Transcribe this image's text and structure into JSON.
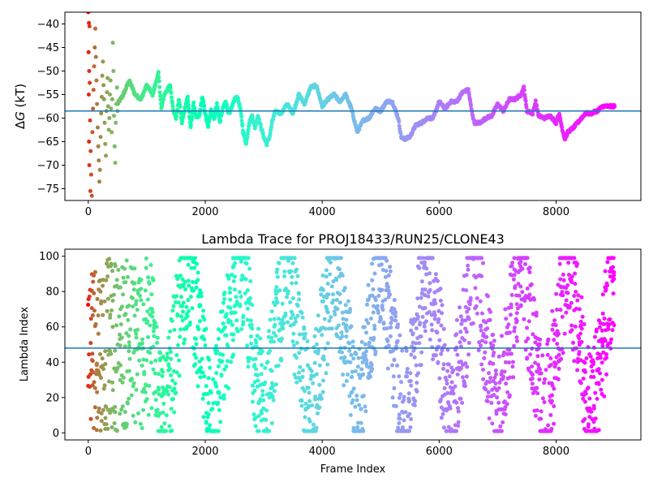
{
  "chart_data": [
    {
      "type": "scatter",
      "title": "",
      "xlabel": "",
      "ylabel": "ΔG (kT)",
      "ylabel_parts": {
        "delta": "Δ",
        "var": "G",
        "unit": " (kT)"
      },
      "xlim": [
        -400,
        9450
      ],
      "ylim": [
        -77.5,
        -37.5
      ],
      "xticks": [
        0,
        2000,
        4000,
        6000,
        8000
      ],
      "xtick_labels": [
        "0",
        "2000",
        "4000",
        "6000",
        "8000"
      ],
      "yticks": [
        -40,
        -45,
        -50,
        -55,
        -60,
        -65,
        -70,
        -75
      ],
      "ytick_labels": [
        "−40",
        "−45",
        "−50",
        "−55",
        "−60",
        "−65",
        "−70",
        "−75"
      ],
      "grid": false,
      "legend": "none",
      "colormap": "rainbow (red at frame 0 → violet at last frame)",
      "hline": {
        "y": -58.5,
        "color": "#1f77b4"
      },
      "early_scatter": [
        [
          0,
          -37.5
        ],
        [
          10,
          -39.8
        ],
        [
          20,
          -40.5
        ],
        [
          5,
          -46
        ],
        [
          15,
          -50
        ],
        [
          25,
          -52.5
        ],
        [
          8,
          -55
        ],
        [
          30,
          -60.5
        ],
        [
          12,
          -65
        ],
        [
          40,
          -67
        ],
        [
          18,
          -70
        ],
        [
          50,
          -72
        ],
        [
          60,
          -76.5
        ],
        [
          35,
          -75.5
        ],
        [
          70,
          -63
        ],
        [
          80,
          -58
        ],
        [
          90,
          -54
        ],
        [
          100,
          -49
        ],
        [
          110,
          -45
        ],
        [
          120,
          -41
        ],
        [
          130,
          -47
        ],
        [
          140,
          -52
        ],
        [
          150,
          -57
        ],
        [
          160,
          -62
        ],
        [
          170,
          -66
        ],
        [
          180,
          -69
        ],
        [
          190,
          -73.5
        ],
        [
          200,
          -71
        ],
        [
          210,
          -64
        ],
        [
          220,
          -59
        ],
        [
          230,
          -55.5
        ],
        [
          240,
          -51
        ],
        [
          250,
          -48
        ],
        [
          260,
          -53
        ],
        [
          270,
          -56
        ],
        [
          280,
          -61
        ],
        [
          290,
          -65.5
        ],
        [
          300,
          -68
        ],
        [
          310,
          -58.5
        ],
        [
          320,
          -54.5
        ],
        [
          330,
          -51.5
        ],
        [
          340,
          -57.5
        ],
        [
          350,
          -62.5
        ],
        [
          360,
          -60
        ],
        [
          370,
          -55
        ],
        [
          380,
          -52
        ],
        [
          390,
          -58
        ],
        [
          400,
          -63
        ],
        [
          410,
          -56
        ],
        [
          420,
          -44
        ],
        [
          430,
          -50
        ],
        [
          440,
          -59.5
        ],
        [
          450,
          -66
        ],
        [
          460,
          -69.5
        ],
        [
          470,
          -61
        ],
        [
          480,
          -57
        ],
        [
          490,
          -53.5
        ],
        [
          500,
          -58.5
        ]
      ],
      "trajectory": [
        [
          500,
          -57
        ],
        [
          600,
          -55
        ],
        [
          700,
          -52
        ],
        [
          800,
          -55
        ],
        [
          900,
          -56
        ],
        [
          1000,
          -53
        ],
        [
          1100,
          -55
        ],
        [
          1200,
          -50.5
        ],
        [
          1250,
          -58
        ],
        [
          1300,
          -55
        ],
        [
          1400,
          -53
        ],
        [
          1450,
          -58
        ],
        [
          1500,
          -60
        ],
        [
          1550,
          -56
        ],
        [
          1600,
          -61
        ],
        [
          1650,
          -58
        ],
        [
          1700,
          -55.5
        ],
        [
          1750,
          -62
        ],
        [
          1800,
          -57
        ],
        [
          1850,
          -60
        ],
        [
          1900,
          -59.5
        ],
        [
          1950,
          -55.5
        ],
        [
          2000,
          -59
        ],
        [
          2050,
          -62
        ],
        [
          2100,
          -58
        ],
        [
          2150,
          -60
        ],
        [
          2200,
          -57
        ],
        [
          2250,
          -61
        ],
        [
          2300,
          -58
        ],
        [
          2350,
          -56.5
        ],
        [
          2400,
          -59
        ],
        [
          2450,
          -58
        ],
        [
          2500,
          -56
        ],
        [
          2550,
          -55.5
        ],
        [
          2600,
          -58
        ],
        [
          2650,
          -63
        ],
        [
          2700,
          -65.5
        ],
        [
          2750,
          -61
        ],
        [
          2800,
          -59.5
        ],
        [
          2850,
          -62
        ],
        [
          2900,
          -59.5
        ],
        [
          3000,
          -64
        ],
        [
          3050,
          -65.5
        ],
        [
          3100,
          -64
        ],
        [
          3150,
          -60.5
        ],
        [
          3200,
          -58.5
        ],
        [
          3300,
          -59
        ],
        [
          3400,
          -57
        ],
        [
          3500,
          -59
        ],
        [
          3600,
          -55
        ],
        [
          3700,
          -57
        ],
        [
          3800,
          -53.5
        ],
        [
          3900,
          -53
        ],
        [
          4000,
          -57.5
        ],
        [
          4100,
          -56
        ],
        [
          4200,
          -55
        ],
        [
          4300,
          -56.5
        ],
        [
          4400,
          -55
        ],
        [
          4500,
          -58
        ],
        [
          4600,
          -63
        ],
        [
          4700,
          -60.5
        ],
        [
          4800,
          -60
        ],
        [
          4900,
          -58
        ],
        [
          5000,
          -58.5
        ],
        [
          5100,
          -56.5
        ],
        [
          5200,
          -56.5
        ],
        [
          5300,
          -60
        ],
        [
          5350,
          -64
        ],
        [
          5400,
          -64.5
        ],
        [
          5500,
          -64
        ],
        [
          5600,
          -61.5
        ],
        [
          5700,
          -61
        ],
        [
          5800,
          -60
        ],
        [
          5900,
          -60
        ],
        [
          6000,
          -56.5
        ],
        [
          6100,
          -58
        ],
        [
          6200,
          -56.5
        ],
        [
          6300,
          -56.5
        ],
        [
          6400,
          -54.5
        ],
        [
          6500,
          -54
        ],
        [
          6550,
          -58
        ],
        [
          6600,
          -61
        ],
        [
          6700,
          -61
        ],
        [
          6800,
          -60
        ],
        [
          6900,
          -59.5
        ],
        [
          7000,
          -57
        ],
        [
          7100,
          -58.5
        ],
        [
          7200,
          -56
        ],
        [
          7300,
          -56
        ],
        [
          7400,
          -55
        ],
        [
          7450,
          -53.5
        ],
        [
          7500,
          -58.5
        ],
        [
          7600,
          -59
        ],
        [
          7650,
          -56.5
        ],
        [
          7700,
          -59.5
        ],
        [
          7800,
          -60
        ],
        [
          7900,
          -59.5
        ],
        [
          8000,
          -61
        ],
        [
          8050,
          -59
        ],
        [
          8100,
          -62
        ],
        [
          8150,
          -64.5
        ],
        [
          8200,
          -63
        ],
        [
          8300,
          -62
        ],
        [
          8400,
          -60.5
        ],
        [
          8500,
          -59
        ],
        [
          8600,
          -59
        ],
        [
          8700,
          -58.5
        ],
        [
          8800,
          -57.5
        ],
        [
          8900,
          -57.5
        ],
        [
          9000,
          -57.5
        ]
      ]
    },
    {
      "type": "scatter",
      "title": "Lambda Trace for PROJ18433/RUN25/CLONE43",
      "xlabel": "Frame Index",
      "ylabel": "Lambda Index",
      "xlim": [
        -400,
        9450
      ],
      "ylim": [
        -4,
        104
      ],
      "xticks": [
        0,
        2000,
        4000,
        6000,
        8000
      ],
      "xtick_labels": [
        "0",
        "2000",
        "4000",
        "6000",
        "8000"
      ],
      "yticks": [
        0,
        20,
        40,
        60,
        80,
        100
      ],
      "ytick_labels": [
        "0",
        "20",
        "40",
        "60",
        "80",
        "100"
      ],
      "grid": false,
      "legend": "none",
      "colormap": "rainbow (red at frame 0 → violet at last frame)",
      "hline": {
        "y": 48,
        "color": "#1f77b4"
      },
      "n_frames": 9000,
      "value_range": [
        1,
        99
      ],
      "walk_segments": [
        [
          0,
          99
        ],
        [
          400,
          5
        ],
        [
          900,
          99
        ],
        [
          1300,
          3
        ],
        [
          1700,
          99
        ],
        [
          2100,
          5
        ],
        [
          2600,
          99
        ],
        [
          3000,
          6
        ],
        [
          3400,
          99
        ],
        [
          3800,
          4
        ],
        [
          4200,
          99
        ],
        [
          4600,
          8
        ],
        [
          5000,
          99
        ],
        [
          5400,
          6
        ],
        [
          5800,
          99
        ],
        [
          6200,
          4
        ],
        [
          6600,
          99
        ],
        [
          7000,
          5
        ],
        [
          7400,
          99
        ],
        [
          7800,
          4
        ],
        [
          8200,
          99
        ],
        [
          8600,
          6
        ],
        [
          9000,
          95
        ]
      ]
    }
  ]
}
